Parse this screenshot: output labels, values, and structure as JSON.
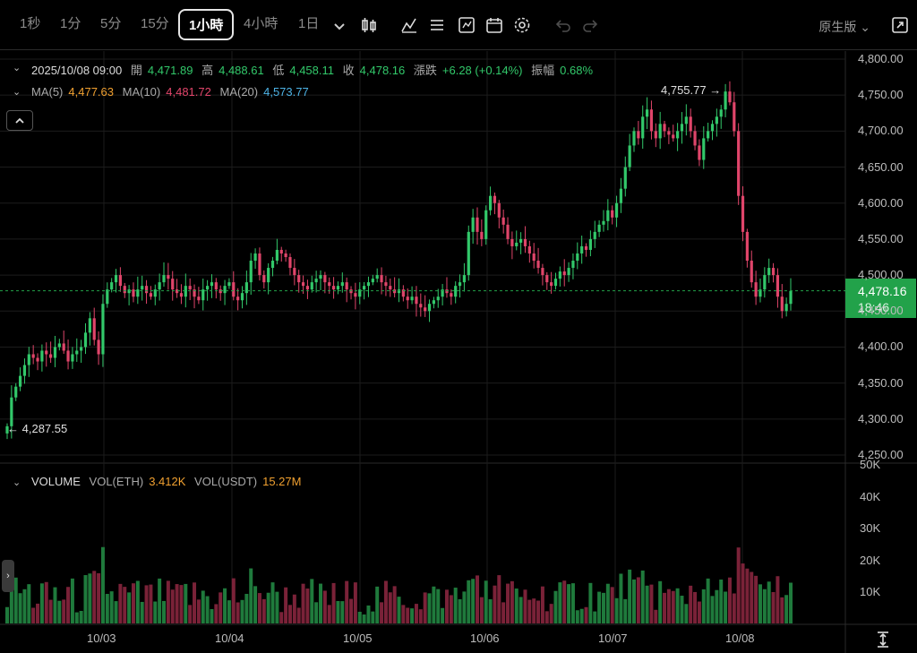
{
  "toolbar": {
    "timeframes": [
      "1秒",
      "1分",
      "5分",
      "15分",
      "1小時",
      "4小時",
      "1日"
    ],
    "active": "1小時",
    "chart_mode": "原生版",
    "tools": [
      "candle-style-icon",
      "indicator-icon",
      "settings-list-icon",
      "chart-template-icon",
      "calendar-icon",
      "gear-icon",
      "undo-icon",
      "redo-icon",
      "fullscreen-icon"
    ]
  },
  "ohlc": {
    "datetime": "2025/10/08 09:00",
    "open_label": "開",
    "open": "4,471.89",
    "high_label": "高",
    "high": "4,488.61",
    "low_label": "低",
    "low": "4,458.11",
    "close_label": "收",
    "close": "4,478.16",
    "change_label": "漲跌",
    "change": "+6.28 (+0.14%)",
    "amp_label": "振幅",
    "amplitude": "0.68%"
  },
  "ma": {
    "ma5_label": "MA(5)",
    "ma5": "4,477.63",
    "ma10_label": "MA(10)",
    "ma10": "4,481.72",
    "ma20_label": "MA(20)",
    "ma20": "4,573.77"
  },
  "volume_legend": {
    "title": "VOLUME",
    "eth_label": "VOL(ETH)",
    "eth": "3.412K",
    "usdt_label": "VOL(USDT)",
    "usdt": "15.27M"
  },
  "last_price": {
    "price": "4,478.16",
    "countdown": "18:46"
  },
  "annotations": {
    "high": "4,755.77",
    "low": "4,287.55"
  },
  "colors": {
    "up": "#32c86a",
    "down": "#e0456a",
    "vol_up": "#1f7a3c",
    "vol_down": "#7a2238",
    "last": "#22a24a"
  },
  "chart_data": [
    {
      "type": "candlestick",
      "interval": "1h",
      "y_ticks": [
        "4,800.00",
        "4,750.00",
        "4,700.00",
        "4,650.00",
        "4,600.00",
        "4,550.00",
        "4,500.00",
        "4,450.00",
        "4,400.00",
        "4,350.00",
        "4,300.00",
        "4,250.00"
      ],
      "ylim": [
        4250,
        4800
      ],
      "x_ticks": [
        "10/03",
        "10/04",
        "10/05",
        "10/06",
        "10/07",
        "10/08"
      ],
      "series_close": [
        4290,
        4330,
        4345,
        4360,
        4375,
        4390,
        4385,
        4380,
        4395,
        4390,
        4385,
        4400,
        4405,
        4395,
        4380,
        4390,
        4395,
        4400,
        4420,
        4440,
        4410,
        4390,
        4460,
        4480,
        4490,
        4500,
        4485,
        4475,
        4480,
        4470,
        4480,
        4485,
        4475,
        4470,
        4480,
        4490,
        4500,
        4495,
        4480,
        4475,
        4470,
        4485,
        4480,
        4470,
        4465,
        4480,
        4485,
        4490,
        4480,
        4475,
        4485,
        4490,
        4470,
        4465,
        4475,
        4490,
        4520,
        4530,
        4500,
        4490,
        4510,
        4520,
        4535,
        4530,
        4525,
        4510,
        4500,
        4490,
        4485,
        4480,
        4490,
        4495,
        4500,
        4490,
        4485,
        4480,
        4485,
        4490,
        4480,
        4475,
        4470,
        4480,
        4485,
        4490,
        4495,
        4500,
        4490,
        4485,
        4480,
        4475,
        4480,
        4470,
        4465,
        4470,
        4460,
        4455,
        4450,
        4460,
        4465,
        4470,
        4480,
        4475,
        4470,
        4485,
        4490,
        4500,
        4560,
        4580,
        4560,
        4550,
        4590,
        4610,
        4600,
        4580,
        4570,
        4550,
        4540,
        4545,
        4550,
        4540,
        4530,
        4520,
        4510,
        4500,
        4490,
        4485,
        4495,
        4505,
        4500,
        4510,
        4520,
        4530,
        4540,
        4535,
        4550,
        4560,
        4570,
        4575,
        4590,
        4580,
        4600,
        4620,
        4650,
        4680,
        4700,
        4690,
        4720,
        4730,
        4700,
        4690,
        4710,
        4700,
        4695,
        4690,
        4700,
        4710,
        4720,
        4700,
        4680,
        4660,
        4690,
        4700,
        4710,
        4720,
        4730,
        4755,
        4740,
        4700,
        4610,
        4560,
        4520,
        4490,
        4470,
        4480,
        4500,
        4510,
        4500,
        4470,
        4450,
        4460,
        4478
      ],
      "volume_axis": [
        "50K",
        "40K",
        "30K",
        "20K",
        "10K"
      ],
      "volume_last": {
        "eth": "3.412K",
        "usdt": "15.27M"
      }
    }
  ]
}
